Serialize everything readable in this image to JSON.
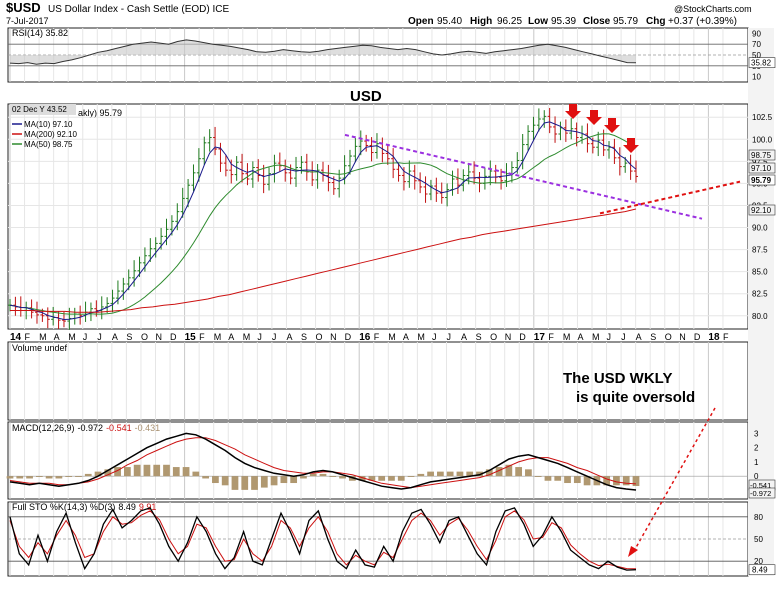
{
  "header": {
    "symbol": "$USD",
    "name": "US Dollar Index - Cash Settle (EOD) ICE",
    "date": "7-Jul-2017",
    "ohlc": {
      "open_label": "Open",
      "open": "95.40",
      "high_label": "High",
      "high": "96.25",
      "low_label": "Low",
      "low": "95.39",
      "close_label": "Close",
      "close": "95.79",
      "chg_label": "Chg",
      "chg": "+0.37 (+0.39%)"
    },
    "source": "@StockCharts.com"
  },
  "chart_data": [
    {
      "type": "line",
      "panel": "rsi",
      "legend": "RSI(14) 35.82",
      "ticks": [
        "90",
        "70",
        "50",
        "30",
        "10"
      ],
      "ylim": [
        0,
        100
      ],
      "levels": [
        70,
        50,
        30
      ],
      "last_label": "35.82",
      "values": [
        35,
        34,
        36,
        33,
        35,
        34,
        38,
        41,
        45,
        50,
        55,
        58,
        62,
        66,
        70,
        72,
        74,
        72,
        70,
        75,
        78,
        76,
        73,
        70,
        68,
        66,
        63,
        60,
        56,
        55,
        57,
        60,
        58,
        56,
        55,
        57,
        60,
        62,
        64,
        66,
        68,
        67,
        64,
        62,
        60,
        62,
        60,
        56,
        52,
        50,
        52,
        55,
        57,
        55,
        53,
        56,
        58,
        60,
        62,
        65,
        68,
        70,
        67,
        64,
        60,
        56,
        52,
        48,
        44,
        40,
        36,
        35.82
      ]
    },
    {
      "type": "line",
      "panel": "price",
      "title": "USD",
      "tooltip": "02 Dec Y 43.52",
      "legend_main": "akly) 95.79",
      "series": [
        {
          "name": "MA(10) 97.10",
          "color": "#1a1a8c"
        },
        {
          "name": "MA(200) 92.10",
          "color": "#cc1111"
        },
        {
          "name": "MA(50) 98.75",
          "color": "#2e8b2e"
        }
      ],
      "y_ticks": [
        "102.5",
        "100.0",
        "97.5",
        "95.0",
        "92.5",
        "90.0",
        "87.5",
        "85.0",
        "82.5",
        "80.0"
      ],
      "ylim": [
        78.5,
        104
      ],
      "right_labels": [
        "98.75",
        "97.10",
        "95.79",
        "92.10"
      ],
      "closes": [
        81.2,
        81.0,
        80.6,
        80.9,
        80.4,
        80.1,
        80.0,
        79.6,
        79.8,
        79.5,
        79.4,
        79.7,
        80.2,
        80.0,
        80.4,
        80.8,
        80.6,
        81.0,
        81.4,
        82.0,
        82.8,
        83.6,
        84.3,
        85.1,
        86.0,
        86.8,
        87.6,
        88.2,
        89.0,
        89.8,
        90.7,
        91.8,
        93.3,
        94.8,
        96.2,
        97.8,
        99.6,
        100.2,
        98.9,
        97.3,
        96.5,
        96.0,
        97.4,
        96.1,
        95.5,
        96.8,
        95.9,
        94.9,
        96.1,
        97.3,
        97.0,
        96.2,
        95.6,
        96.8,
        97.4,
        96.3,
        95.4,
        96.5,
        95.9,
        95.1,
        94.4,
        95.6,
        97.0,
        98.1,
        99.2,
        99.8,
        99.3,
        98.5,
        99.5,
        98.4,
        97.8,
        96.6,
        95.9,
        95.2,
        96.4,
        95.3,
        94.6,
        93.8,
        94.7,
        93.9,
        93.4,
        94.3,
        95.5,
        94.8,
        95.9,
        96.3,
        95.6,
        95.0,
        95.8,
        96.4,
        95.7,
        95.3,
        96.1,
        96.8,
        97.6,
        99.4,
        100.9,
        101.6,
        102.3,
        102.6,
        101.4,
        100.6,
        101.3,
        100.7,
        101.2,
        100.2,
        100.6,
        99.5,
        99.1,
        99.9,
        98.8,
        99.1,
        97.9,
        96.9,
        97.3,
        96.4,
        95.79
      ],
      "ma_200": [
        80.6,
        80.6,
        80.6,
        80.5,
        80.5,
        80.5,
        80.4,
        80.4,
        80.4,
        80.5,
        80.6,
        80.7,
        80.9,
        81.0,
        81.2,
        81.3,
        81.5,
        81.7,
        81.9,
        82.2,
        82.4,
        82.7,
        83.0,
        83.3,
        83.6,
        83.9,
        84.2,
        84.5,
        84.8,
        85.1,
        85.4,
        85.7,
        86.0,
        86.3,
        86.6,
        86.9,
        87.2,
        87.5,
        87.8,
        88.1,
        88.4,
        88.7,
        88.9,
        89.2,
        89.4,
        89.6,
        89.8,
        90.0,
        90.2,
        90.4,
        90.6,
        90.8,
        91.0,
        91.2,
        91.4,
        91.6,
        91.8,
        92.1
      ],
      "annotations": {
        "arrows": 4,
        "downtrend_line": "purple dashed",
        "uptrend_line": "red dashed"
      }
    },
    {
      "type": "bar",
      "panel": "volume",
      "legend": "Volume undef"
    },
    {
      "type": "line",
      "panel": "macd",
      "legend_name": "MACD(12,26,9)",
      "macd": "-0.972",
      "signal": "-0.541",
      "hist": "-0.431",
      "ticks": [
        "3",
        "2",
        "1",
        "0",
        "-1"
      ],
      "ylim": [
        -1.6,
        3.8
      ],
      "right_labels": [
        "-0.541",
        "-0.972"
      ],
      "macd_values": [
        -0.4,
        -0.5,
        -0.6,
        -0.5,
        -0.6,
        -0.7,
        -0.6,
        -0.5,
        -0.3,
        0.0,
        0.4,
        0.8,
        1.2,
        1.6,
        2.0,
        2.3,
        2.6,
        2.8,
        3.0,
        2.9,
        2.6,
        2.2,
        1.8,
        1.3,
        0.9,
        0.6,
        0.4,
        0.2,
        0.1,
        0.0,
        0.1,
        0.3,
        0.4,
        0.3,
        0.1,
        -0.1,
        -0.3,
        -0.5,
        -0.7,
        -0.8,
        -0.9,
        -0.8,
        -0.6,
        -0.4,
        -0.3,
        -0.2,
        -0.1,
        0.0,
        0.1,
        0.4,
        0.8,
        1.2,
        1.4,
        1.5,
        1.3,
        1.1,
        0.9,
        0.6,
        0.3,
        0.0,
        -0.3,
        -0.6,
        -0.8,
        -0.9,
        -0.972
      ],
      "signal_values": [
        -0.3,
        -0.4,
        -0.5,
        -0.5,
        -0.5,
        -0.6,
        -0.6,
        -0.5,
        -0.4,
        -0.2,
        0.1,
        0.4,
        0.8,
        1.1,
        1.5,
        1.8,
        2.1,
        2.4,
        2.6,
        2.7,
        2.7,
        2.5,
        2.2,
        1.9,
        1.5,
        1.2,
        0.9,
        0.6,
        0.4,
        0.3,
        0.2,
        0.2,
        0.3,
        0.3,
        0.2,
        0.1,
        -0.1,
        -0.3,
        -0.5,
        -0.6,
        -0.7,
        -0.8,
        -0.7,
        -0.6,
        -0.5,
        -0.4,
        -0.3,
        -0.2,
        -0.1,
        0.1,
        0.4,
        0.7,
        1.0,
        1.2,
        1.3,
        1.3,
        1.1,
        0.9,
        0.6,
        0.4,
        0.1,
        -0.2,
        -0.4,
        -0.5,
        -0.541
      ]
    },
    {
      "type": "line",
      "panel": "sto",
      "legend_name": "Full STO %K(14,3) %D(3)",
      "k": "8.49",
      "d": "9.91",
      "ticks": [
        "80",
        "50",
        "20"
      ],
      "ylim": [
        0,
        100
      ],
      "levels": [
        80,
        50,
        20
      ],
      "right_label": "8.49",
      "k_values": [
        80,
        30,
        15,
        55,
        20,
        60,
        85,
        45,
        10,
        30,
        70,
        90,
        65,
        75,
        88,
        92,
        70,
        40,
        20,
        45,
        80,
        60,
        30,
        10,
        25,
        60,
        20,
        15,
        50,
        85,
        60,
        30,
        75,
        88,
        50,
        20,
        10,
        35,
        15,
        12,
        40,
        20,
        60,
        85,
        90,
        70,
        45,
        75,
        80,
        55,
        30,
        15,
        60,
        88,
        92,
        70,
        40,
        55,
        80,
        60,
        35,
        25,
        15,
        10,
        20,
        12,
        8,
        8.49
      ],
      "d_values": [
        75,
        40,
        25,
        45,
        30,
        55,
        75,
        55,
        25,
        30,
        60,
        80,
        70,
        72,
        82,
        88,
        76,
        50,
        30,
        40,
        70,
        65,
        40,
        20,
        22,
        50,
        30,
        20,
        40,
        75,
        65,
        40,
        65,
        80,
        60,
        30,
        15,
        28,
        20,
        15,
        32,
        25,
        50,
        75,
        85,
        75,
        55,
        70,
        78,
        62,
        40,
        22,
        48,
        80,
        88,
        76,
        50,
        52,
        72,
        65,
        42,
        30,
        20,
        14,
        16,
        13,
        10,
        9.91
      ]
    }
  ],
  "x_axis": {
    "labels": [
      "14",
      "F",
      "M",
      "A",
      "M",
      "J",
      "J",
      "A",
      "S",
      "O",
      "N",
      "D",
      "15",
      "F",
      "M",
      "A",
      "M",
      "J",
      "J",
      "A",
      "S",
      "O",
      "N",
      "D",
      "16",
      "F",
      "M",
      "A",
      "M",
      "J",
      "J",
      "A",
      "S",
      "O",
      "N",
      "D",
      "17",
      "F",
      "M",
      "A",
      "M",
      "J",
      "J",
      "A",
      "S",
      "O",
      "N",
      "D",
      "18",
      "F"
    ],
    "bold": [
      "14",
      "15",
      "16",
      "17",
      "18"
    ]
  },
  "annotation_text": {
    "line1": "The USD WKLY",
    "line2": "is quite oversold"
  },
  "colors": {
    "accent_red": "#e01010",
    "purple": "#9b30e0",
    "ma10": "#1a1a8c",
    "ma50": "#2e8b2e",
    "ma200": "#cc1111",
    "hist": "#b09870"
  }
}
